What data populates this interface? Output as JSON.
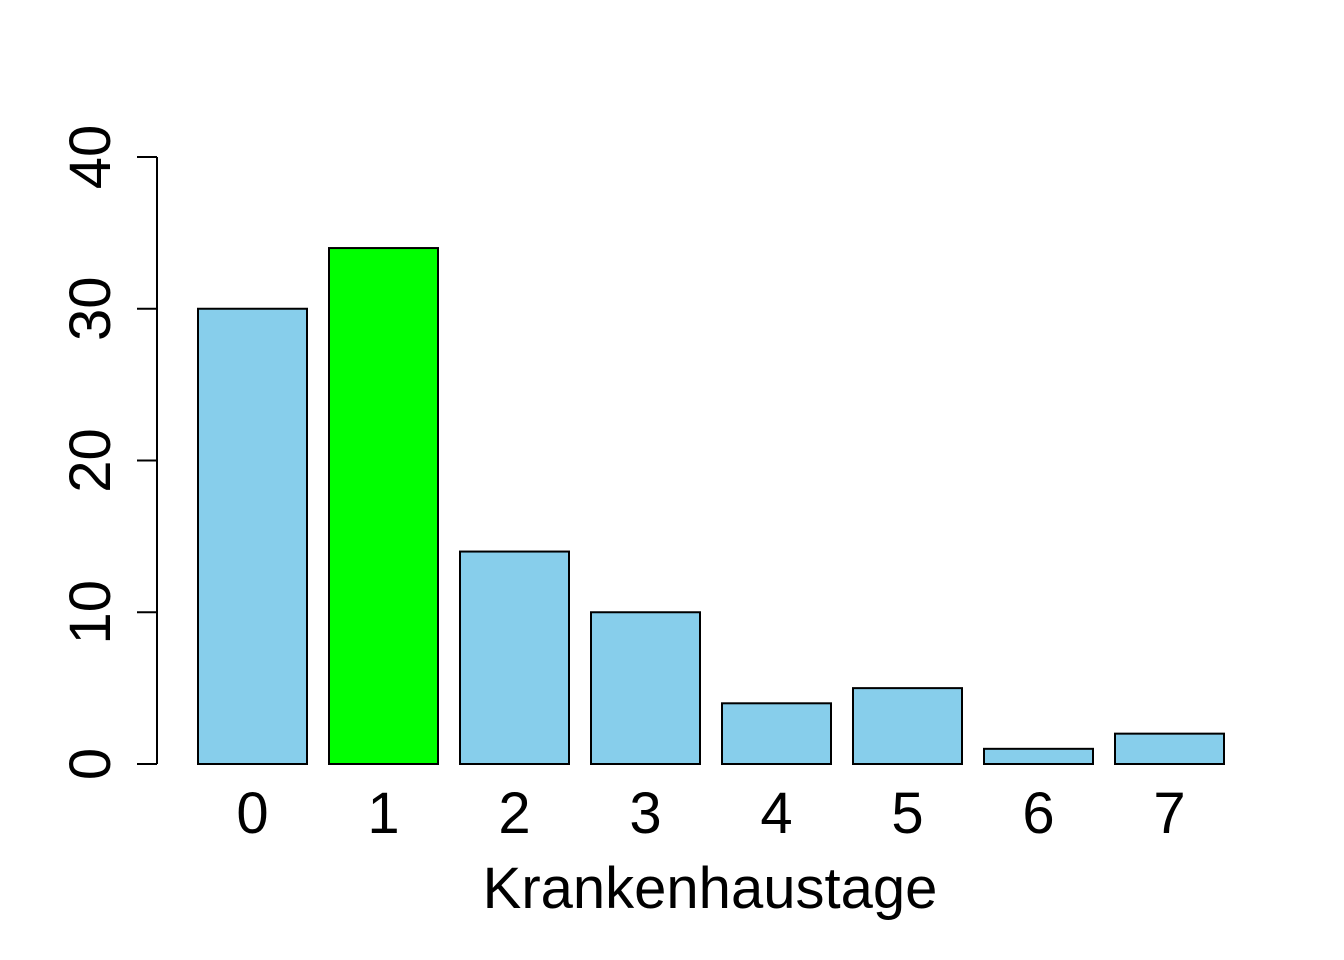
{
  "chart_data": {
    "type": "bar",
    "title": "",
    "xlabel": "Krankenhaustage",
    "ylabel": "",
    "categories": [
      "0",
      "1",
      "2",
      "3",
      "4",
      "5",
      "6",
      "7"
    ],
    "values": [
      30,
      34,
      14,
      10,
      4,
      5,
      1,
      2
    ],
    "ylim": [
      0,
      40
    ],
    "yticks": [
      "0",
      "10",
      "20",
      "30",
      "40"
    ],
    "grid": false,
    "colors": {
      "default": "#87ceeb",
      "highlight": "#00ff00",
      "border": "#000000"
    },
    "highlight_index": 1
  }
}
